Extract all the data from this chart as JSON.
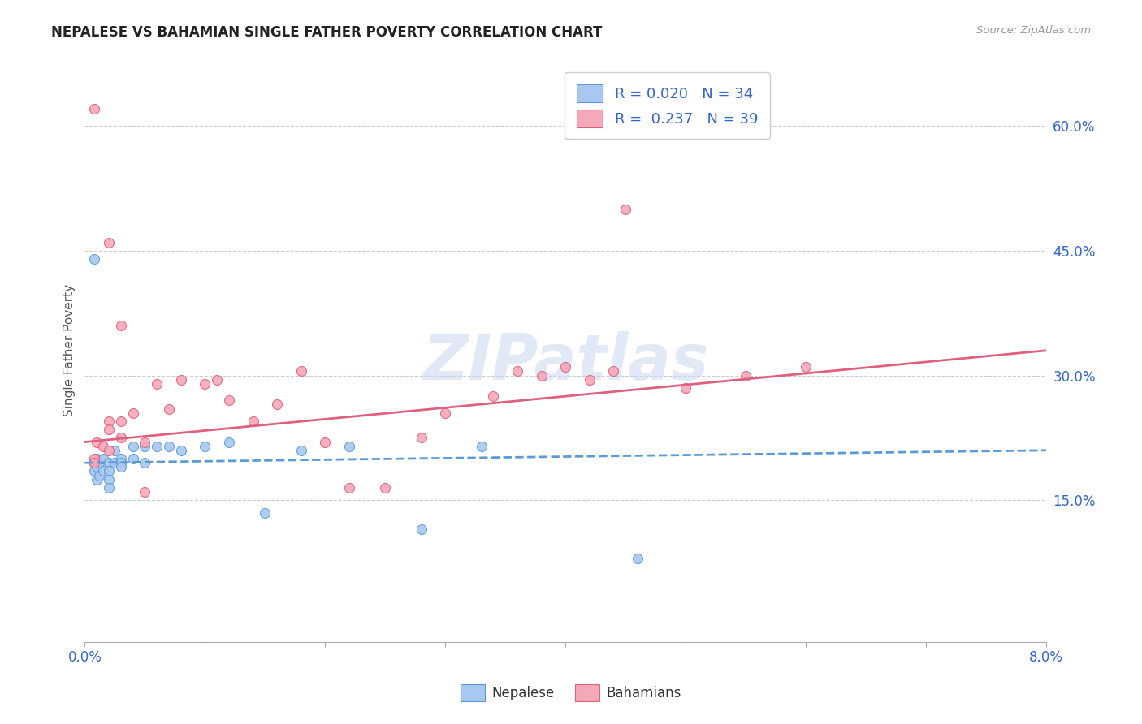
{
  "title": "NEPALESE VS BAHAMIAN SINGLE FATHER POVERTY CORRELATION CHART",
  "source": "Source: ZipAtlas.com",
  "ylabel": "Single Father Poverty",
  "right_yticks": [
    "15.0%",
    "30.0%",
    "45.0%",
    "60.0%"
  ],
  "right_ytick_vals": [
    0.15,
    0.3,
    0.45,
    0.6
  ],
  "xlim": [
    0.0,
    0.08
  ],
  "ylim": [
    -0.02,
    0.68
  ],
  "watermark": "ZIPatlas",
  "legend_R1": "R = 0.020",
  "legend_N1": "N = 34",
  "legend_R2": "R = 0.237",
  "legend_N2": "N = 39",
  "nepalese_color": "#a8c8f0",
  "bahamians_color": "#f5a8b8",
  "nepalese_edge_color": "#5b9bd5",
  "bahamians_edge_color": "#e06080",
  "nepalese_line_color": "#5b9bd5",
  "bahamians_line_color": "#e06080",
  "nepalese_x": [
    0.0008,
    0.0008,
    0.001,
    0.001,
    0.001,
    0.0012,
    0.0012,
    0.0015,
    0.0015,
    0.002,
    0.002,
    0.002,
    0.002,
    0.0025,
    0.0025,
    0.003,
    0.003,
    0.003,
    0.004,
    0.004,
    0.005,
    0.005,
    0.006,
    0.007,
    0.008,
    0.01,
    0.012,
    0.015,
    0.018,
    0.022,
    0.028,
    0.033,
    0.046,
    0.0008
  ],
  "nepalese_y": [
    0.195,
    0.185,
    0.2,
    0.19,
    0.175,
    0.195,
    0.18,
    0.2,
    0.185,
    0.195,
    0.185,
    0.175,
    0.165,
    0.21,
    0.195,
    0.2,
    0.195,
    0.19,
    0.215,
    0.2,
    0.215,
    0.195,
    0.215,
    0.215,
    0.21,
    0.215,
    0.22,
    0.135,
    0.21,
    0.215,
    0.115,
    0.215,
    0.08,
    0.44
  ],
  "bahamians_x": [
    0.0008,
    0.0008,
    0.001,
    0.0015,
    0.002,
    0.002,
    0.002,
    0.003,
    0.003,
    0.004,
    0.005,
    0.006,
    0.007,
    0.008,
    0.01,
    0.011,
    0.012,
    0.014,
    0.016,
    0.018,
    0.02,
    0.022,
    0.025,
    0.028,
    0.03,
    0.034,
    0.036,
    0.038,
    0.04,
    0.042,
    0.044,
    0.05,
    0.055,
    0.06,
    0.0008,
    0.002,
    0.003,
    0.005,
    0.045
  ],
  "bahamians_y": [
    0.2,
    0.195,
    0.22,
    0.215,
    0.245,
    0.235,
    0.21,
    0.245,
    0.225,
    0.255,
    0.22,
    0.29,
    0.26,
    0.295,
    0.29,
    0.295,
    0.27,
    0.245,
    0.265,
    0.305,
    0.22,
    0.165,
    0.165,
    0.225,
    0.255,
    0.275,
    0.305,
    0.3,
    0.31,
    0.295,
    0.305,
    0.285,
    0.3,
    0.31,
    0.62,
    0.46,
    0.36,
    0.16,
    0.5
  ]
}
